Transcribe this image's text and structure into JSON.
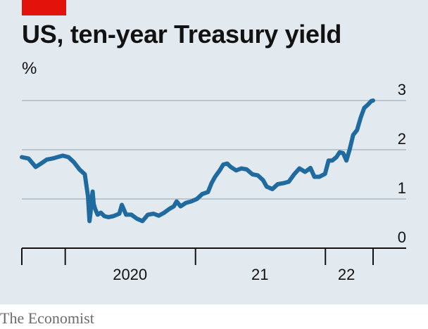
{
  "header": {
    "title": "US, ten-year Treasury yield",
    "unit": "%"
  },
  "footer": {
    "source": "The Economist"
  },
  "colors": {
    "background": "#e2eaf0",
    "line": "#1f6b9f",
    "accent": "#e3120b",
    "grid": "#b9c6d0"
  },
  "chart_data": {
    "type": "line",
    "title": "US, ten-year Treasury yield",
    "ylabel": "%",
    "ylim": [
      0,
      3
    ],
    "yticks": [
      0,
      1,
      2,
      3
    ],
    "xlim": [
      "2019-09-01",
      "2022-05-15"
    ],
    "year_ticks": [
      "2019-09-01",
      "2020-01-01",
      "2021-01-01",
      "2022-01-01",
      "2022-05-15"
    ],
    "x_labels": [
      {
        "label": "2020",
        "at": "2020-07-01"
      },
      {
        "label": "21",
        "at": "2021-07-01"
      },
      {
        "label": "22",
        "at": "2022-03-01"
      }
    ],
    "grid": true,
    "series": [
      {
        "x": [
          "2019-09-01",
          "2019-09-20",
          "2019-10-10",
          "2019-10-25",
          "2019-11-10",
          "2019-11-25",
          "2019-12-10",
          "2019-12-25",
          "2020-01-10",
          "2020-01-25",
          "2020-02-10",
          "2020-02-25",
          "2020-03-05",
          "2020-03-09",
          "2020-03-12",
          "2020-03-15",
          "2020-03-18",
          "2020-03-21",
          "2020-03-25",
          "2020-04-01",
          "2020-04-10",
          "2020-04-20",
          "2020-05-01",
          "2020-05-15",
          "2020-06-01",
          "2020-06-08",
          "2020-06-20",
          "2020-07-05",
          "2020-07-20",
          "2020-08-05",
          "2020-08-20",
          "2020-09-05",
          "2020-09-20",
          "2020-10-05",
          "2020-10-20",
          "2020-11-01",
          "2020-11-09",
          "2020-11-20",
          "2020-12-05",
          "2020-12-20",
          "2021-01-05",
          "2021-01-20",
          "2021-02-05",
          "2021-02-15",
          "2021-02-25",
          "2021-03-10",
          "2021-03-20",
          "2021-03-31",
          "2021-04-10",
          "2021-04-25",
          "2021-05-10",
          "2021-05-25",
          "2021-06-10",
          "2021-06-25",
          "2021-07-10",
          "2021-07-20",
          "2021-08-05",
          "2021-08-20",
          "2021-09-05",
          "2021-09-20",
          "2021-10-05",
          "2021-10-20",
          "2021-11-05",
          "2021-11-20",
          "2021-12-01",
          "2021-12-15",
          "2021-12-31",
          "2022-01-10",
          "2022-01-20",
          "2022-02-01",
          "2022-02-10",
          "2022-02-20",
          "2022-03-01",
          "2022-03-10",
          "2022-03-20",
          "2022-03-31",
          "2022-04-10",
          "2022-04-20",
          "2022-05-01",
          "2022-05-10",
          "2022-05-15"
        ],
        "values": [
          1.85,
          1.82,
          1.65,
          1.72,
          1.8,
          1.82,
          1.85,
          1.88,
          1.85,
          1.75,
          1.6,
          1.5,
          1.05,
          0.55,
          0.72,
          0.98,
          1.15,
          0.9,
          0.8,
          0.68,
          0.72,
          0.65,
          0.63,
          0.65,
          0.7,
          0.88,
          0.68,
          0.68,
          0.6,
          0.55,
          0.68,
          0.7,
          0.66,
          0.72,
          0.8,
          0.85,
          0.95,
          0.85,
          0.92,
          0.95,
          1.0,
          1.1,
          1.14,
          1.32,
          1.45,
          1.58,
          1.7,
          1.72,
          1.65,
          1.58,
          1.62,
          1.6,
          1.5,
          1.48,
          1.38,
          1.25,
          1.2,
          1.3,
          1.32,
          1.35,
          1.5,
          1.62,
          1.55,
          1.63,
          1.45,
          1.45,
          1.51,
          1.78,
          1.78,
          1.85,
          1.95,
          1.93,
          1.78,
          2.0,
          2.3,
          2.4,
          2.65,
          2.85,
          2.92,
          2.99,
          3.0
        ]
      }
    ]
  }
}
